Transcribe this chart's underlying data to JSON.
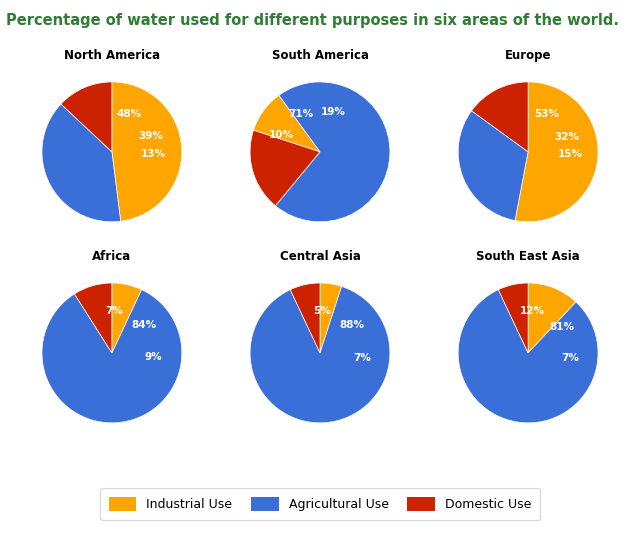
{
  "title": "Percentage of water used for different purposes in six areas of the world.",
  "title_color": "#2e7d32",
  "title_fontsize": 10.5,
  "background_color": "#ffffff",
  "colors": [
    "#FFA500",
    "#3A6FD8",
    "#CC2200"
  ],
  "charts": [
    {
      "name": "North America",
      "values": [
        48,
        39,
        13
      ],
      "start_angle": 90
    },
    {
      "name": "South America",
      "values": [
        10,
        71,
        19
      ],
      "start_angle": 162
    },
    {
      "name": "Europe",
      "values": [
        53,
        32,
        15
      ],
      "start_angle": 90
    },
    {
      "name": "Africa",
      "values": [
        7,
        84,
        9
      ],
      "start_angle": 90
    },
    {
      "name": "Central Asia",
      "values": [
        5,
        88,
        7
      ],
      "start_angle": 90
    },
    {
      "name": "South East Asia",
      "values": [
        12,
        81,
        7
      ],
      "start_angle": 90
    }
  ],
  "legend_labels": [
    "Industrial Use",
    "Agricultural Use",
    "Domestic Use"
  ]
}
